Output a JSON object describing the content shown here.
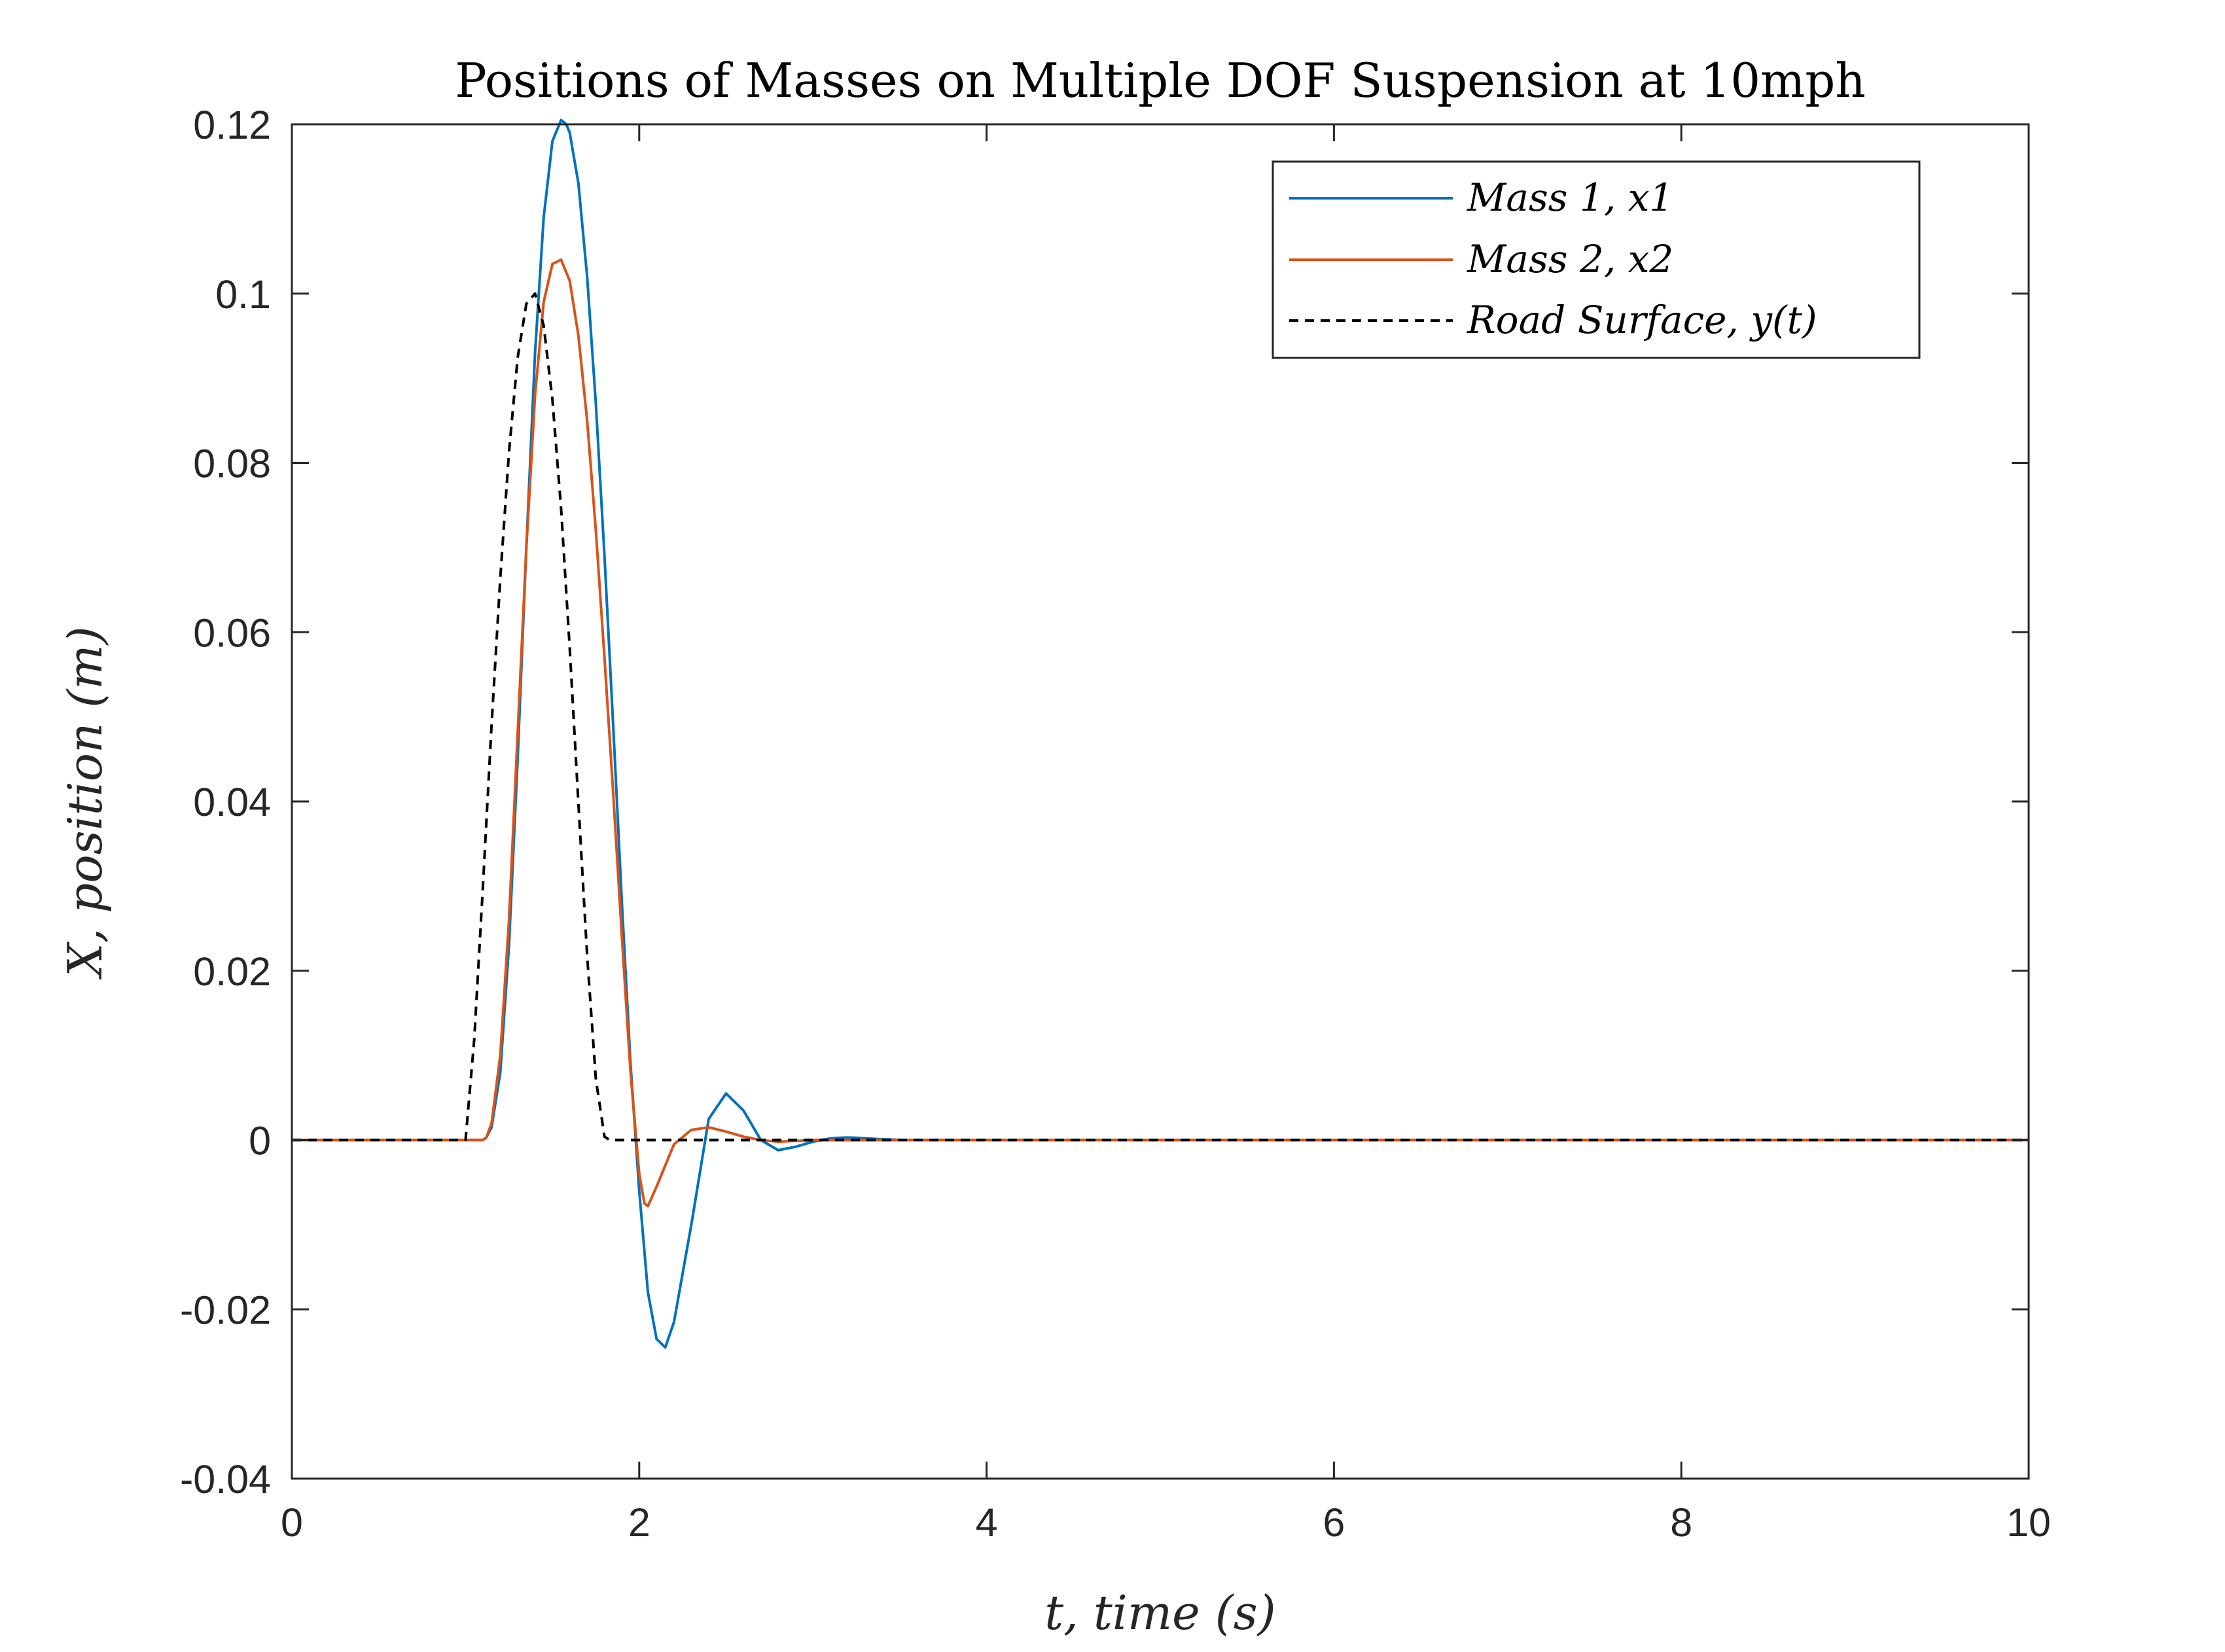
{
  "chart_data": {
    "type": "line",
    "title": "Positions of Masses on Multiple DOF Suspension at 10mph",
    "xlabel": "t, time (s)",
    "ylabel": "X, position (m)",
    "xlim": [
      0,
      10
    ],
    "ylim": [
      -0.04,
      0.12
    ],
    "x_ticks": [
      0,
      2,
      4,
      6,
      8,
      10
    ],
    "x_tick_labels": [
      "0",
      "2",
      "4",
      "6",
      "8",
      "10"
    ],
    "y_ticks": [
      -0.04,
      -0.02,
      0,
      0.02,
      0.04,
      0.06,
      0.08,
      0.1,
      0.12
    ],
    "y_tick_labels": [
      "-0.04",
      "-0.02",
      "0",
      "0.02",
      "0.04",
      "0.06",
      "0.08",
      "0.1",
      "0.12"
    ],
    "grid": false,
    "legend_position": "top-right",
    "series": [
      {
        "name": "Mass 1, x1",
        "color": "#0072BD",
        "style": "solid",
        "x": [
          0,
          1.0,
          1.1,
          1.12,
          1.15,
          1.2,
          1.25,
          1.3,
          1.35,
          1.4,
          1.45,
          1.5,
          1.55,
          1.58,
          1.6,
          1.65,
          1.7,
          1.75,
          1.8,
          1.85,
          1.9,
          1.95,
          2.0,
          2.05,
          2.1,
          2.15,
          2.2,
          2.3,
          2.4,
          2.5,
          2.6,
          2.7,
          2.8,
          2.9,
          3.0,
          3.1,
          3.2,
          3.3,
          3.5,
          4.0,
          10.0
        ],
        "y": [
          0,
          0,
          0,
          0.0003,
          0.0015,
          0.008,
          0.023,
          0.045,
          0.07,
          0.093,
          0.109,
          0.118,
          0.1205,
          0.12,
          0.119,
          0.113,
          0.102,
          0.087,
          0.069,
          0.049,
          0.028,
          0.009,
          -0.006,
          -0.018,
          -0.0235,
          -0.0245,
          -0.0215,
          -0.01,
          0.0025,
          0.0055,
          0.0035,
          0.0,
          -0.0012,
          -0.0008,
          -0.0002,
          0.0002,
          0.0003,
          0.0002,
          0.0,
          0,
          0
        ]
      },
      {
        "name": "Mass 2, x2",
        "color": "#D95319",
        "style": "solid",
        "x": [
          0,
          1.0,
          1.1,
          1.12,
          1.15,
          1.2,
          1.25,
          1.3,
          1.35,
          1.4,
          1.45,
          1.5,
          1.55,
          1.6,
          1.65,
          1.7,
          1.75,
          1.8,
          1.85,
          1.9,
          1.95,
          2.0,
          2.03,
          2.05,
          2.1,
          2.15,
          2.2,
          2.3,
          2.4,
          2.5,
          2.6,
          2.7,
          2.8,
          2.9,
          3.0,
          3.2,
          3.5,
          10.0
        ],
        "y": [
          0,
          0,
          0,
          0.0003,
          0.002,
          0.01,
          0.026,
          0.048,
          0.07,
          0.088,
          0.099,
          0.1035,
          0.104,
          0.1015,
          0.095,
          0.085,
          0.072,
          0.057,
          0.041,
          0.024,
          0.008,
          -0.004,
          -0.0075,
          -0.0078,
          -0.0055,
          -0.003,
          -0.0005,
          0.0012,
          0.0015,
          0.001,
          0.0004,
          0.0,
          -0.0002,
          -0.0001,
          0.0,
          0.0,
          0,
          0
        ]
      },
      {
        "name": "Road Surface, y(t)",
        "color": "#000000",
        "style": "dashed",
        "x": [
          0,
          1.0,
          1.05,
          1.1,
          1.15,
          1.2,
          1.25,
          1.3,
          1.35,
          1.4,
          1.45,
          1.5,
          1.55,
          1.6,
          1.65,
          1.7,
          1.75,
          1.8,
          1.83,
          10.0
        ],
        "y": [
          0,
          0,
          0.0119,
          0.0299,
          0.0491,
          0.0664,
          0.0813,
          0.0924,
          0.0988,
          0.1,
          0.0962,
          0.0875,
          0.0746,
          0.0581,
          0.0397,
          0.0218,
          0.0072,
          0.0004,
          0,
          0
        ]
      }
    ]
  }
}
